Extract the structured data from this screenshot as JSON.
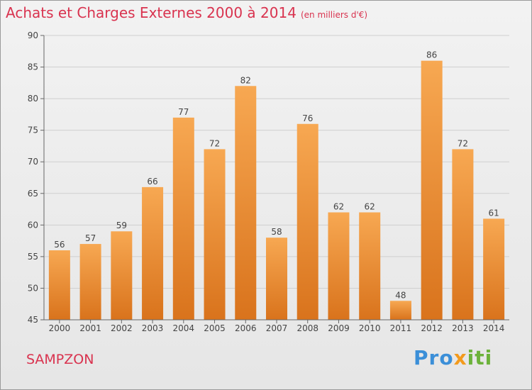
{
  "chart_data": {
    "type": "bar",
    "title": "Achats et Charges Externes 2000 à 2014",
    "subtitle": "(en milliers d'€)",
    "categories": [
      "2000",
      "2001",
      "2002",
      "2003",
      "2004",
      "2005",
      "2006",
      "2007",
      "2008",
      "2009",
      "2010",
      "2011",
      "2012",
      "2013",
      "2014"
    ],
    "values": [
      56,
      57,
      59,
      66,
      77,
      72,
      82,
      58,
      76,
      62,
      62,
      48,
      86,
      72,
      61
    ],
    "ylim": [
      45,
      90
    ],
    "yticks": [
      45,
      50,
      55,
      60,
      65,
      70,
      75,
      80,
      85,
      90
    ],
    "grid": true,
    "bar_color_top": "#f7a852",
    "bar_color_bottom": "#d9731c"
  },
  "footer": {
    "town": "SAMPZON",
    "logo": [
      "Pro",
      "x",
      "iti"
    ]
  },
  "colors": {
    "title": "#d9334f"
  }
}
